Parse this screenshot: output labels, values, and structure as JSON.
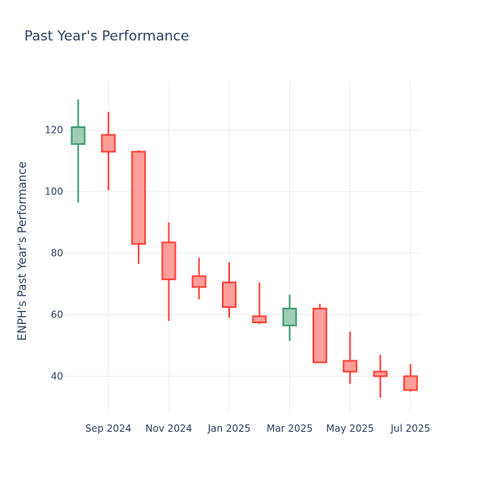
{
  "chart_data": {
    "type": "candlestick",
    "title": "Past Year's Performance",
    "xlabel": "",
    "ylabel": "ENPH's Past Year's Performance",
    "ylim": [
      28,
      136
    ],
    "y_ticks": [
      40,
      60,
      80,
      100,
      120
    ],
    "x_ticks": [
      {
        "label": "Sep 2024",
        "index": 1
      },
      {
        "label": "Nov 2024",
        "index": 3
      },
      {
        "label": "Jan 2025",
        "index": 5
      },
      {
        "label": "Mar 2025",
        "index": 7
      },
      {
        "label": "May 2025",
        "index": 9
      },
      {
        "label": "Jul 2025",
        "index": 11
      }
    ],
    "increasing_color": "#3D9970",
    "increasing_fill": "#9ECCB7",
    "decreasing_color": "#FF4136",
    "decreasing_fill": "#FF9F9A",
    "candles": [
      {
        "open": 115.5,
        "high": 130,
        "low": 96.5,
        "close": 121
      },
      {
        "open": 118.5,
        "high": 126,
        "low": 100.5,
        "close": 113
      },
      {
        "open": 113,
        "high": 113.5,
        "low": 76.5,
        "close": 83
      },
      {
        "open": 83.5,
        "high": 90,
        "low": 58,
        "close": 71.5
      },
      {
        "open": 72.5,
        "high": 78.5,
        "low": 65,
        "close": 69
      },
      {
        "open": 70.5,
        "high": 77,
        "low": 59,
        "close": 62.5
      },
      {
        "open": 59.5,
        "high": 70.5,
        "low": 57,
        "close": 57.5
      },
      {
        "open": 56.5,
        "high": 66.5,
        "low": 51.5,
        "close": 62
      },
      {
        "open": 62,
        "high": 63.5,
        "low": 44.5,
        "close": 44.5
      },
      {
        "open": 45,
        "high": 54.5,
        "low": 37.5,
        "close": 41.5
      },
      {
        "open": 41.5,
        "high": 47,
        "low": 33,
        "close": 40
      },
      {
        "open": 40,
        "high": 44,
        "low": 35,
        "close": 35.5
      }
    ]
  }
}
